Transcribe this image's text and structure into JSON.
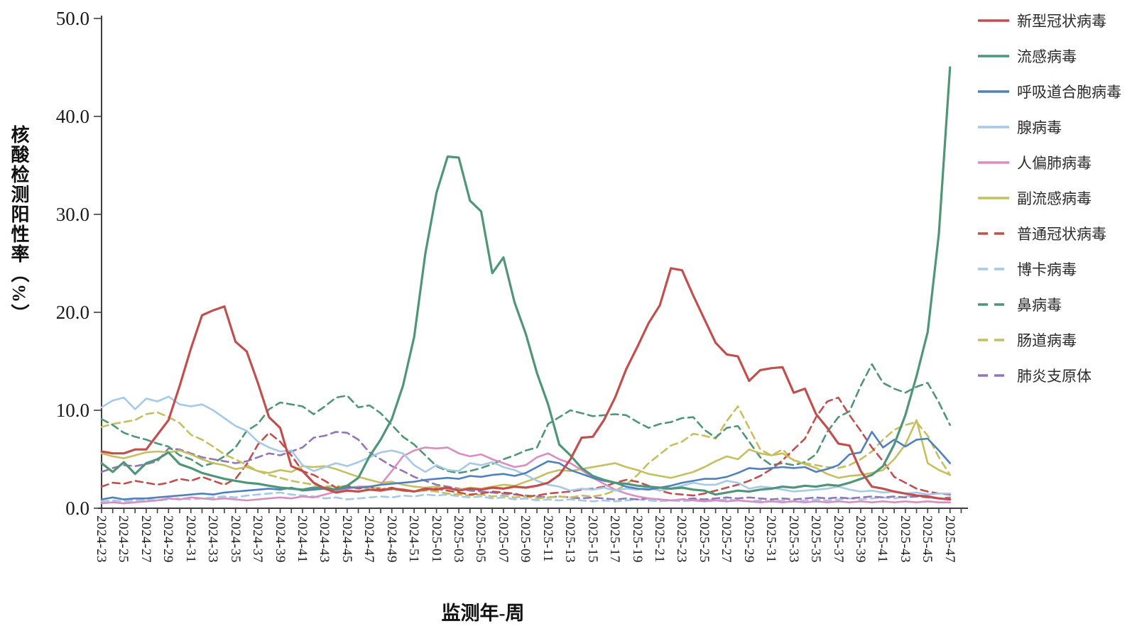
{
  "chart_data": {
    "type": "line",
    "title": "",
    "xlabel": "监测年-周",
    "ylabel": "核酸检测阳性率（%）",
    "ylim": [
      0,
      50
    ],
    "y_ticks": [
      0,
      10,
      20,
      30,
      40,
      50
    ],
    "y_tick_labels": [
      "0.0",
      "10.0",
      "20.0",
      "30.0",
      "40.0",
      "50.0"
    ],
    "x_label_every": 2,
    "grid": false,
    "legend_position": "right",
    "x": [
      "2024-23",
      "2024-24",
      "2024-25",
      "2024-26",
      "2024-27",
      "2024-28",
      "2024-29",
      "2024-30",
      "2024-31",
      "2024-32",
      "2024-33",
      "2024-34",
      "2024-35",
      "2024-36",
      "2024-37",
      "2024-38",
      "2024-39",
      "2024-40",
      "2024-41",
      "2024-42",
      "2024-43",
      "2024-44",
      "2024-45",
      "2024-46",
      "2024-47",
      "2024-48",
      "2024-49",
      "2024-50",
      "2024-51",
      "2024-52",
      "2025-01",
      "2025-02",
      "2025-03",
      "2025-04",
      "2025-05",
      "2025-06",
      "2025-07",
      "2025-08",
      "2025-09",
      "2025-10",
      "2025-11",
      "2025-12",
      "2025-13",
      "2025-14",
      "2025-15",
      "2025-16",
      "2025-17",
      "2025-18",
      "2025-19",
      "2025-20",
      "2025-21",
      "2025-22",
      "2025-23",
      "2025-24",
      "2025-25",
      "2025-26",
      "2025-27",
      "2025-28",
      "2025-29",
      "2025-30",
      "2025-31",
      "2025-32",
      "2025-33",
      "2025-34",
      "2025-35",
      "2025-36",
      "2025-37",
      "2025-38",
      "2025-39",
      "2025-40",
      "2025-41",
      "2025-42",
      "2025-43",
      "2025-44",
      "2025-45",
      "2025-46",
      "2025-47"
    ],
    "series": [
      {
        "key": "covid",
        "name": "新型冠状病毒",
        "color": "#c0504d",
        "dash": false,
        "values": [
          5.8,
          5.6,
          5.6,
          6.0,
          6.0,
          7.5,
          9.0,
          12.5,
          16.3,
          19.7,
          20.2,
          20.6,
          17.0,
          16.0,
          12.8,
          9.3,
          8.2,
          4.3,
          3.8,
          2.6,
          2.0,
          1.6,
          1.8,
          1.7,
          1.9,
          1.8,
          2.0,
          1.9,
          1.7,
          2.0,
          1.9,
          2.1,
          1.8,
          2.0,
          1.9,
          2.1,
          2.0,
          2.2,
          2.1,
          2.3,
          2.6,
          3.4,
          5.0,
          7.2,
          7.3,
          9.0,
          11.3,
          14.2,
          16.5,
          18.9,
          20.7,
          24.5,
          24.3,
          21.7,
          19.3,
          16.9,
          15.7,
          15.5,
          13.0,
          14.1,
          14.3,
          14.4,
          11.8,
          12.2,
          9.6,
          8.2,
          6.6,
          6.4,
          3.8,
          2.2,
          2.0,
          1.7,
          1.5,
          1.3,
          1.2,
          1.0,
          0.9
        ]
      },
      {
        "key": "flu",
        "name": "流感病毒",
        "color": "#4f9678",
        "dash": false,
        "values": [
          4.6,
          3.7,
          4.7,
          3.5,
          4.6,
          5.0,
          5.7,
          4.5,
          4.1,
          3.6,
          3.3,
          3.0,
          2.8,
          2.6,
          2.5,
          2.3,
          2.1,
          2.0,
          1.9,
          2.1,
          2.1,
          1.9,
          2.3,
          3.1,
          5.3,
          7.0,
          9.1,
          12.5,
          17.5,
          26.0,
          32.2,
          35.9,
          35.8,
          31.4,
          30.3,
          24.0,
          25.6,
          21.0,
          17.8,
          13.8,
          10.6,
          6.5,
          5.4,
          4.1,
          3.3,
          2.9,
          2.6,
          2.5,
          2.3,
          2.2,
          2.1,
          2.0,
          2.1,
          1.9,
          1.8,
          1.4,
          1.6,
          1.8,
          1.7,
          1.9,
          2.0,
          2.2,
          2.1,
          2.3,
          2.2,
          2.4,
          2.3,
          2.6,
          3.0,
          3.4,
          4.3,
          6.5,
          9.5,
          13.5,
          18.0,
          28.0,
          45.0
        ]
      },
      {
        "key": "rsv",
        "name": "呼吸道合胞病毒",
        "color": "#4f81bd",
        "dash": false,
        "values": [
          0.9,
          1.1,
          0.9,
          1.0,
          1.0,
          1.1,
          1.2,
          1.3,
          1.4,
          1.5,
          1.4,
          1.6,
          1.7,
          1.8,
          1.9,
          2.0,
          1.9,
          2.1,
          1.8,
          1.9,
          2.0,
          1.9,
          2.1,
          2.1,
          2.2,
          2.4,
          2.5,
          2.6,
          2.7,
          2.9,
          3.0,
          3.1,
          3.0,
          3.3,
          3.2,
          3.4,
          3.5,
          3.3,
          3.6,
          4.2,
          4.8,
          4.6,
          3.9,
          3.5,
          3.1,
          2.8,
          2.6,
          2.2,
          2.0,
          1.9,
          2.1,
          2.3,
          2.6,
          2.8,
          3.0,
          3.0,
          3.2,
          3.6,
          4.1,
          4.0,
          4.1,
          4.2,
          4.1,
          4.2,
          3.7,
          4.0,
          4.4,
          5.5,
          5.7,
          7.8,
          6.2,
          7.0,
          6.3,
          7.0,
          7.1,
          5.9,
          4.6
        ]
      },
      {
        "key": "adv",
        "name": "腺病毒",
        "color": "#a6c9e8",
        "dash": false,
        "values": [
          10.3,
          11.0,
          11.3,
          10.1,
          11.2,
          10.9,
          11.4,
          10.6,
          10.4,
          10.6,
          10.0,
          9.2,
          8.4,
          7.9,
          6.8,
          6.2,
          5.8,
          5.9,
          4.4,
          3.8,
          4.2,
          4.6,
          4.3,
          4.7,
          5.2,
          5.7,
          5.9,
          5.6,
          4.4,
          3.7,
          4.4,
          3.9,
          3.8,
          4.6,
          4.4,
          4.7,
          4.2,
          3.9,
          3.4,
          2.8,
          2.4,
          2.2,
          1.8,
          2.0,
          1.9,
          2.1,
          1.8,
          2.0,
          1.9,
          2.1,
          1.8,
          2.0,
          2.3,
          2.6,
          2.4,
          2.4,
          2.8,
          2.6,
          2.0,
          2.2,
          2.1,
          1.9,
          1.7,
          1.8,
          1.9,
          2.0,
          2.2,
          1.9,
          1.7,
          1.8,
          1.6,
          1.7,
          1.5,
          1.6,
          1.4,
          1.5,
          1.5
        ]
      },
      {
        "key": "hmpv",
        "name": "人偏肺病毒",
        "color": "#d88ec0",
        "dash": false,
        "values": [
          0.5,
          0.6,
          0.5,
          0.6,
          0.7,
          0.8,
          1.0,
          0.9,
          1.1,
          1.0,
          0.9,
          1.0,
          0.9,
          0.8,
          0.9,
          1.0,
          1.1,
          1.0,
          1.2,
          1.1,
          1.4,
          1.7,
          2.0,
          2.2,
          2.2,
          2.4,
          3.8,
          5.3,
          5.9,
          6.2,
          6.1,
          6.2,
          5.6,
          5.3,
          5.5,
          5.0,
          4.6,
          4.2,
          4.4,
          5.2,
          5.6,
          5.0,
          4.6,
          3.9,
          3.1,
          2.5,
          1.9,
          1.5,
          1.2,
          1.0,
          0.9,
          0.8,
          0.9,
          0.8,
          0.7,
          0.8,
          0.7,
          0.8,
          0.7,
          0.6,
          0.7,
          0.6,
          0.7,
          0.6,
          0.7,
          0.6,
          0.7,
          0.6,
          0.7,
          0.6,
          0.7,
          0.6,
          0.7,
          0.6,
          0.7,
          0.6,
          0.6
        ]
      },
      {
        "key": "piv",
        "name": "副流感病毒",
        "color": "#c5bf5f",
        "dash": false,
        "values": [
          5.6,
          5.3,
          5.1,
          5.4,
          5.7,
          5.8,
          5.7,
          5.9,
          5.5,
          5.0,
          4.6,
          4.4,
          4.0,
          4.2,
          3.8,
          3.6,
          3.9,
          3.7,
          4.3,
          4.2,
          4.3,
          4.0,
          3.6,
          3.2,
          2.9,
          2.6,
          2.7,
          2.4,
          2.2,
          2.1,
          2.2,
          2.0,
          1.9,
          2.1,
          2.0,
          2.2,
          2.4,
          2.3,
          2.7,
          3.1,
          3.6,
          3.9,
          3.8,
          4.0,
          4.2,
          4.4,
          4.6,
          4.2,
          3.9,
          3.5,
          3.3,
          3.1,
          3.4,
          3.7,
          4.2,
          4.8,
          5.3,
          5.0,
          6.0,
          5.6,
          5.4,
          5.6,
          4.9,
          4.5,
          4.1,
          3.5,
          3.1,
          3.3,
          3.4,
          3.6,
          3.9,
          5.0,
          6.5,
          9.0,
          4.6,
          3.9,
          3.4
        ]
      },
      {
        "key": "hcov",
        "name": "普通冠状病毒",
        "color": "#c0504d",
        "dash": true,
        "values": [
          2.2,
          2.6,
          2.5,
          2.8,
          2.6,
          2.4,
          2.6,
          3.0,
          2.8,
          3.2,
          2.8,
          2.4,
          3.0,
          4.5,
          6.5,
          7.7,
          6.8,
          5.4,
          3.8,
          3.4,
          2.8,
          2.1,
          2.3,
          2.0,
          2.2,
          1.9,
          2.1,
          1.8,
          1.7,
          1.9,
          2.0,
          1.8,
          1.6,
          1.4,
          1.5,
          1.7,
          1.6,
          1.5,
          1.2,
          1.3,
          1.5,
          1.6,
          1.7,
          1.9,
          2.0,
          2.2,
          2.6,
          2.9,
          2.7,
          2.3,
          1.8,
          1.5,
          1.4,
          1.3,
          1.5,
          1.8,
          2.1,
          2.4,
          2.8,
          3.3,
          4.0,
          4.9,
          6.0,
          7.1,
          9.3,
          10.9,
          11.3,
          9.5,
          7.9,
          6.2,
          4.8,
          3.2,
          2.6,
          2.0,
          1.7,
          1.5,
          1.4
        ]
      },
      {
        "key": "hbov",
        "name": "博卡病毒",
        "color": "#a6c9e8",
        "dash": true,
        "values": [
          0.7,
          0.8,
          0.7,
          0.8,
          0.9,
          0.8,
          0.9,
          1.0,
          0.9,
          1.0,
          1.1,
          1.2,
          1.1,
          1.3,
          1.4,
          1.5,
          1.6,
          1.4,
          1.3,
          1.2,
          1.0,
          1.1,
          0.9,
          1.0,
          1.1,
          1.2,
          1.1,
          1.3,
          1.2,
          1.4,
          1.3,
          1.4,
          1.2,
          1.1,
          1.2,
          1.0,
          1.1,
          0.9,
          1.0,
          0.8,
          0.9,
          0.8,
          0.9,
          0.8,
          0.7,
          0.8,
          0.7,
          0.8,
          0.9,
          0.8,
          0.7,
          0.8,
          0.7,
          0.8,
          0.9,
          0.8,
          0.9,
          0.8,
          0.7,
          0.8,
          0.7,
          0.8,
          0.7,
          0.8,
          0.9,
          0.8,
          0.9,
          1.0,
          0.9,
          1.0,
          1.1,
          1.0,
          1.2,
          1.3,
          1.1,
          1.0,
          0.9
        ]
      },
      {
        "key": "hrv",
        "name": "鼻病毒",
        "color": "#4f9678",
        "dash": true,
        "values": [
          9.1,
          8.5,
          7.7,
          7.3,
          7.0,
          6.6,
          6.3,
          5.4,
          5.0,
          4.3,
          4.6,
          5.3,
          6.2,
          7.9,
          8.6,
          10.1,
          10.8,
          10.6,
          10.4,
          9.6,
          10.4,
          11.3,
          11.5,
          10.3,
          10.5,
          9.7,
          8.5,
          7.3,
          6.5,
          5.4,
          4.3,
          3.8,
          3.6,
          3.8,
          4.1,
          4.5,
          5.0,
          5.4,
          5.9,
          6.2,
          8.6,
          9.3,
          10.0,
          9.7,
          9.4,
          9.5,
          9.6,
          9.5,
          8.8,
          8.2,
          8.6,
          8.8,
          9.2,
          9.3,
          8.0,
          7.2,
          8.2,
          8.4,
          6.8,
          5.2,
          4.4,
          4.6,
          4.4,
          4.7,
          5.5,
          7.8,
          9.3,
          9.9,
          12.5,
          14.7,
          12.8,
          12.2,
          11.8,
          12.4,
          12.8,
          10.8,
          8.5
        ]
      },
      {
        "key": "ev",
        "name": "肠道病毒",
        "color": "#c5bf5f",
        "dash": true,
        "values": [
          8.3,
          8.6,
          8.8,
          9.0,
          9.6,
          9.8,
          9.3,
          8.7,
          7.5,
          7.0,
          6.3,
          5.5,
          5.0,
          4.4,
          3.8,
          3.4,
          3.1,
          2.8,
          2.6,
          2.4,
          2.2,
          2.3,
          2.1,
          2.2,
          2.0,
          2.1,
          1.9,
          1.8,
          1.7,
          1.8,
          1.7,
          1.5,
          1.4,
          1.3,
          1.4,
          1.2,
          1.3,
          1.1,
          1.2,
          1.0,
          1.1,
          1.2,
          1.1,
          1.3,
          1.2,
          1.4,
          1.8,
          2.4,
          3.4,
          4.6,
          5.5,
          6.4,
          6.8,
          7.6,
          7.4,
          7.1,
          8.9,
          10.4,
          8.2,
          6.0,
          5.4,
          6.0,
          4.9,
          4.6,
          4.4,
          4.2,
          4.1,
          4.4,
          5.0,
          5.8,
          7.0,
          8.0,
          8.5,
          8.8,
          7.4,
          5.2,
          3.4
        ]
      },
      {
        "key": "mp",
        "name": "肺炎支原体",
        "color": "#9176b8",
        "dash": true,
        "values": [
          3.7,
          4.1,
          4.4,
          4.3,
          4.5,
          4.8,
          6.1,
          6.0,
          5.6,
          5.2,
          5.0,
          4.8,
          4.6,
          4.8,
          5.2,
          5.6,
          5.4,
          5.8,
          6.2,
          7.2,
          7.4,
          7.8,
          7.7,
          7.0,
          5.7,
          5.0,
          4.3,
          3.8,
          3.2,
          2.8,
          2.4,
          2.2,
          2.0,
          1.8,
          1.7,
          1.6,
          1.5,
          1.4,
          1.3,
          1.2,
          1.1,
          1.2,
          1.1,
          1.0,
          1.1,
          1.0,
          0.9,
          1.0,
          0.9,
          1.0,
          0.9,
          0.8,
          0.9,
          1.0,
          0.9,
          1.0,
          1.1,
          1.0,
          1.1,
          1.0,
          0.9,
          1.0,
          0.9,
          1.0,
          1.1,
          1.0,
          1.1,
          1.0,
          1.1,
          1.2,
          1.1,
          1.2,
          1.1,
          1.2,
          1.1,
          1.0,
          1.1
        ]
      }
    ]
  }
}
